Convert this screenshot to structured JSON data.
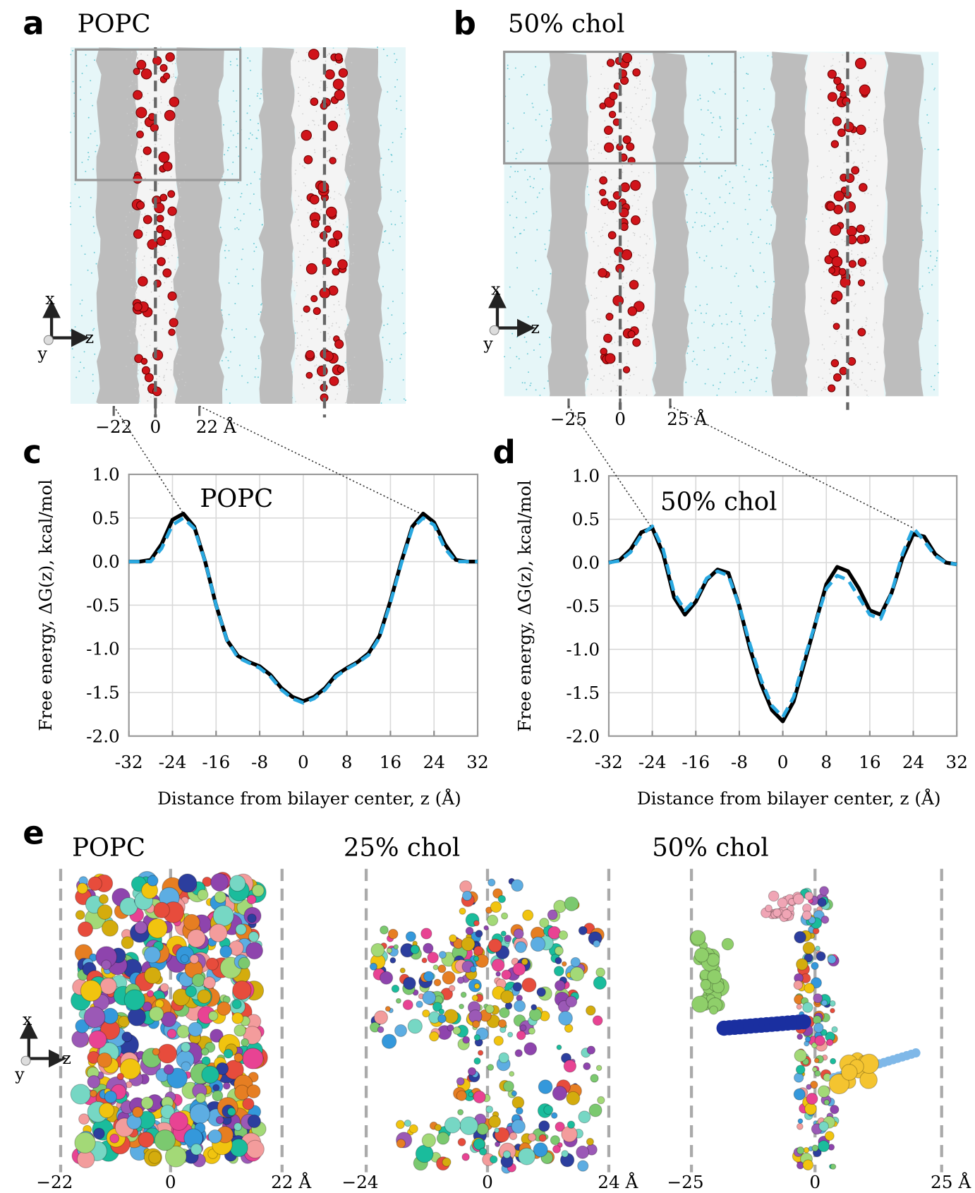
{
  "panels": {
    "a": {
      "label": "a",
      "title": "POPC",
      "ticks": [
        "−22",
        "0",
        "22 Å"
      ]
    },
    "b": {
      "label": "b",
      "title": "50% chol",
      "ticks": [
        "−25",
        "0",
        "25 Å"
      ]
    },
    "e": {
      "label": "e",
      "subpanels": [
        {
          "title": "POPC",
          "ticks": [
            "−22",
            "0",
            "22 Å"
          ]
        },
        {
          "title": "25% chol",
          "ticks": [
            "−24",
            "0",
            "24 Å"
          ]
        },
        {
          "title": "50% chol",
          "ticks": [
            "−25",
            "0",
            "25 Å"
          ]
        }
      ]
    },
    "axis_glyph_labels": [
      "x",
      "y",
      "z"
    ]
  },
  "chart_data": [
    {
      "type": "line",
      "label": "c",
      "title": "POPC",
      "xlabel": "Distance from bilayer center, z (Å)",
      "ylabel": "Free energy, ΔG(z), kcal/mol",
      "x": [
        -32,
        -30,
        -28,
        -26,
        -24,
        -22,
        -20,
        -18,
        -16,
        -14,
        -12,
        -10,
        -8,
        -6,
        -4,
        -2,
        0,
        2,
        4,
        6,
        8,
        10,
        12,
        14,
        16,
        18,
        20,
        22,
        24,
        26,
        28,
        30,
        32
      ],
      "series": [
        {
          "color": "#000000",
          "values": [
            0,
            0,
            0.02,
            0.2,
            0.48,
            0.55,
            0.4,
            0.0,
            -0.5,
            -0.9,
            -1.08,
            -1.15,
            -1.2,
            -1.3,
            -1.45,
            -1.55,
            -1.6,
            -1.55,
            -1.45,
            -1.3,
            -1.22,
            -1.15,
            -1.05,
            -0.85,
            -0.45,
            0.0,
            0.4,
            0.55,
            0.45,
            0.2,
            0.02,
            0,
            0
          ]
        },
        {
          "color": "#29a8e0",
          "dashed": true,
          "values": [
            0,
            0,
            0,
            0.15,
            0.42,
            0.5,
            0.38,
            0.0,
            -0.5,
            -0.9,
            -1.1,
            -1.16,
            -1.22,
            -1.32,
            -1.47,
            -1.57,
            -1.62,
            -1.57,
            -1.47,
            -1.32,
            -1.23,
            -1.16,
            -1.07,
            -0.87,
            -0.47,
            -0.02,
            0.38,
            0.5,
            0.42,
            0.15,
            0,
            0,
            0
          ]
        }
      ],
      "xlim": [
        -32,
        32
      ],
      "ylim": [
        -2,
        1
      ],
      "xticks": [
        -32,
        -24,
        -16,
        -8,
        0,
        8,
        16,
        24,
        32
      ],
      "yticks": [
        {
          "value": 1,
          "label": "1.0"
        },
        {
          "value": 0.5,
          "label": "0.5"
        },
        {
          "value": 0,
          "label": "0.0"
        },
        {
          "value": -0.5,
          "label": "-0.5"
        },
        {
          "value": -1,
          "label": "-1.0"
        },
        {
          "value": -1.5,
          "label": "-1.5"
        },
        {
          "value": -2,
          "label": "-2.0"
        }
      ],
      "grid": true
    },
    {
      "type": "line",
      "label": "d",
      "title": "50% chol",
      "xlabel": "Distance from bilayer center, z (Å)",
      "ylabel": "Free energy, ΔG(z), kcal/mol",
      "x": [
        -32,
        -30,
        -28,
        -26,
        -24,
        -22,
        -20,
        -18,
        -16,
        -14,
        -12,
        -10,
        -8,
        -6,
        -4,
        -2,
        0,
        2,
        4,
        6,
        8,
        10,
        12,
        14,
        16,
        18,
        20,
        22,
        24,
        26,
        28,
        30,
        32
      ],
      "series": [
        {
          "color": "#000000",
          "values": [
            0,
            0.03,
            0.15,
            0.35,
            0.4,
            0.1,
            -0.4,
            -0.6,
            -0.45,
            -0.2,
            -0.08,
            -0.12,
            -0.5,
            -1.0,
            -1.4,
            -1.7,
            -1.83,
            -1.6,
            -1.15,
            -0.7,
            -0.25,
            -0.05,
            -0.1,
            -0.3,
            -0.55,
            -0.6,
            -0.35,
            0.05,
            0.33,
            0.3,
            0.1,
            0,
            -0.02
          ]
        },
        {
          "color": "#29a8e0",
          "dashed": true,
          "values": [
            0,
            0.02,
            0.12,
            0.32,
            0.42,
            0.15,
            -0.35,
            -0.55,
            -0.42,
            -0.18,
            -0.1,
            -0.15,
            -0.5,
            -0.95,
            -1.35,
            -1.65,
            -1.78,
            -1.55,
            -1.1,
            -0.7,
            -0.3,
            -0.15,
            -0.2,
            -0.4,
            -0.6,
            -0.65,
            -0.35,
            0.1,
            0.4,
            0.25,
            0.08,
            0,
            -0.02
          ]
        }
      ],
      "xlim": [
        -32,
        32
      ],
      "ylim": [
        -2,
        1
      ],
      "xticks": [
        -32,
        -24,
        -16,
        -8,
        0,
        8,
        16,
        24,
        32
      ],
      "yticks": [
        {
          "value": 1,
          "label": "1.0"
        },
        {
          "value": 0.5,
          "label": "0.5"
        },
        {
          "value": 0,
          "label": "0.0"
        },
        {
          "value": -0.5,
          "label": "-0.5"
        },
        {
          "value": -1,
          "label": "-1.0"
        },
        {
          "value": -1.5,
          "label": "-1.5"
        },
        {
          "value": -2,
          "label": "-2.0"
        }
      ],
      "grid": true
    }
  ]
}
